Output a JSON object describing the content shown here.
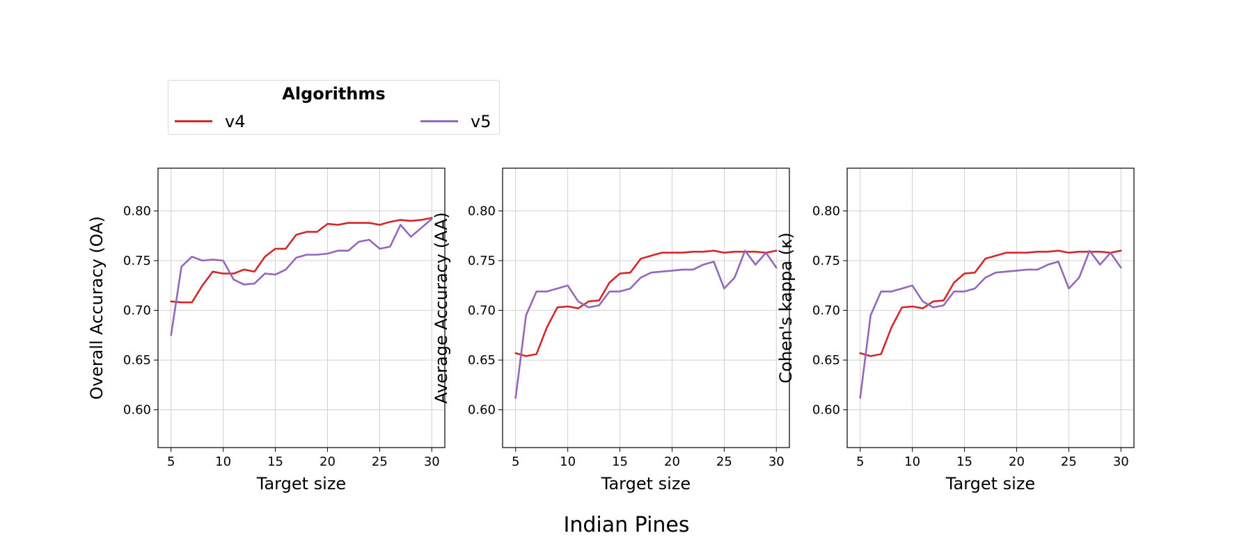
{
  "figure_title": "Indian Pines",
  "legend": {
    "title": "Algorithms",
    "entries": [
      {
        "label": "v4",
        "color": "#d62728"
      },
      {
        "label": "v5",
        "color": "#9467bd"
      }
    ]
  },
  "chart_data": [
    {
      "type": "line",
      "xlabel": "Target size",
      "ylabel": "Overall Accuracy (OA)",
      "xlim": [
        3.75,
        31.25
      ],
      "ylim": [
        0.562,
        0.843
      ],
      "xticks": [
        5,
        10,
        15,
        20,
        25,
        30
      ],
      "yticks": [
        0.6,
        0.65,
        0.7,
        0.75,
        0.8
      ],
      "grid": true,
      "x": [
        5,
        6,
        7,
        8,
        9,
        10,
        11,
        12,
        13,
        14,
        15,
        16,
        17,
        18,
        19,
        20,
        21,
        22,
        23,
        24,
        25,
        26,
        27,
        28,
        29,
        30
      ],
      "series": [
        {
          "name": "v4",
          "color": "#d62728",
          "values": [
            0.709,
            0.708,
            0.708,
            0.725,
            0.739,
            0.737,
            0.737,
            0.741,
            0.739,
            0.754,
            0.762,
            0.762,
            0.776,
            0.779,
            0.779,
            0.787,
            0.786,
            0.788,
            0.788,
            0.788,
            0.786,
            0.789,
            0.791,
            0.79,
            0.791,
            0.793
          ]
        },
        {
          "name": "v5",
          "color": "#9467bd",
          "values": [
            0.675,
            0.744,
            0.754,
            0.75,
            0.751,
            0.75,
            0.731,
            0.726,
            0.727,
            0.737,
            0.736,
            0.741,
            0.753,
            0.756,
            0.756,
            0.757,
            0.76,
            0.76,
            0.769,
            0.771,
            0.762,
            0.764,
            0.786,
            0.774,
            0.783,
            0.792
          ]
        }
      ]
    },
    {
      "type": "line",
      "xlabel": "Target size",
      "ylabel": "Average Accuracy (AA)",
      "xlim": [
        3.75,
        31.25
      ],
      "ylim": [
        0.562,
        0.843
      ],
      "xticks": [
        5,
        10,
        15,
        20,
        25,
        30
      ],
      "yticks": [
        0.6,
        0.65,
        0.7,
        0.75,
        0.8
      ],
      "grid": true,
      "x": [
        5,
        6,
        7,
        8,
        9,
        10,
        11,
        12,
        13,
        14,
        15,
        16,
        17,
        18,
        19,
        20,
        21,
        22,
        23,
        24,
        25,
        26,
        27,
        28,
        29,
        30
      ],
      "series": [
        {
          "name": "v4",
          "color": "#d62728",
          "values": [
            0.657,
            0.654,
            0.656,
            0.683,
            0.703,
            0.704,
            0.702,
            0.709,
            0.71,
            0.728,
            0.737,
            0.738,
            0.752,
            0.755,
            0.758,
            0.758,
            0.758,
            0.759,
            0.759,
            0.76,
            0.758,
            0.759,
            0.759,
            0.759,
            0.758,
            0.76
          ]
        },
        {
          "name": "v5",
          "color": "#9467bd",
          "values": [
            0.612,
            0.695,
            0.719,
            0.719,
            0.722,
            0.725,
            0.709,
            0.703,
            0.705,
            0.719,
            0.719,
            0.722,
            0.733,
            0.738,
            0.739,
            0.74,
            0.741,
            0.741,
            0.746,
            0.749,
            0.722,
            0.733,
            0.76,
            0.746,
            0.758,
            0.743
          ]
        }
      ]
    },
    {
      "type": "line",
      "xlabel": "Target size",
      "ylabel": "Cohen's kappa (κ)",
      "xlim": [
        3.75,
        31.25
      ],
      "ylim": [
        0.562,
        0.843
      ],
      "xticks": [
        5,
        10,
        15,
        20,
        25,
        30
      ],
      "yticks": [
        0.6,
        0.65,
        0.7,
        0.75,
        0.8
      ],
      "grid": true,
      "x": [
        5,
        6,
        7,
        8,
        9,
        10,
        11,
        12,
        13,
        14,
        15,
        16,
        17,
        18,
        19,
        20,
        21,
        22,
        23,
        24,
        25,
        26,
        27,
        28,
        29,
        30
      ],
      "series": [
        {
          "name": "v4",
          "color": "#d62728",
          "values": [
            0.657,
            0.654,
            0.656,
            0.683,
            0.703,
            0.704,
            0.702,
            0.709,
            0.71,
            0.728,
            0.737,
            0.738,
            0.752,
            0.755,
            0.758,
            0.758,
            0.758,
            0.759,
            0.759,
            0.76,
            0.758,
            0.759,
            0.759,
            0.759,
            0.758,
            0.76
          ]
        },
        {
          "name": "v5",
          "color": "#9467bd",
          "values": [
            0.612,
            0.695,
            0.719,
            0.719,
            0.722,
            0.725,
            0.709,
            0.703,
            0.705,
            0.719,
            0.719,
            0.722,
            0.733,
            0.738,
            0.739,
            0.74,
            0.741,
            0.741,
            0.746,
            0.749,
            0.722,
            0.733,
            0.76,
            0.746,
            0.758,
            0.743
          ]
        }
      ]
    }
  ]
}
